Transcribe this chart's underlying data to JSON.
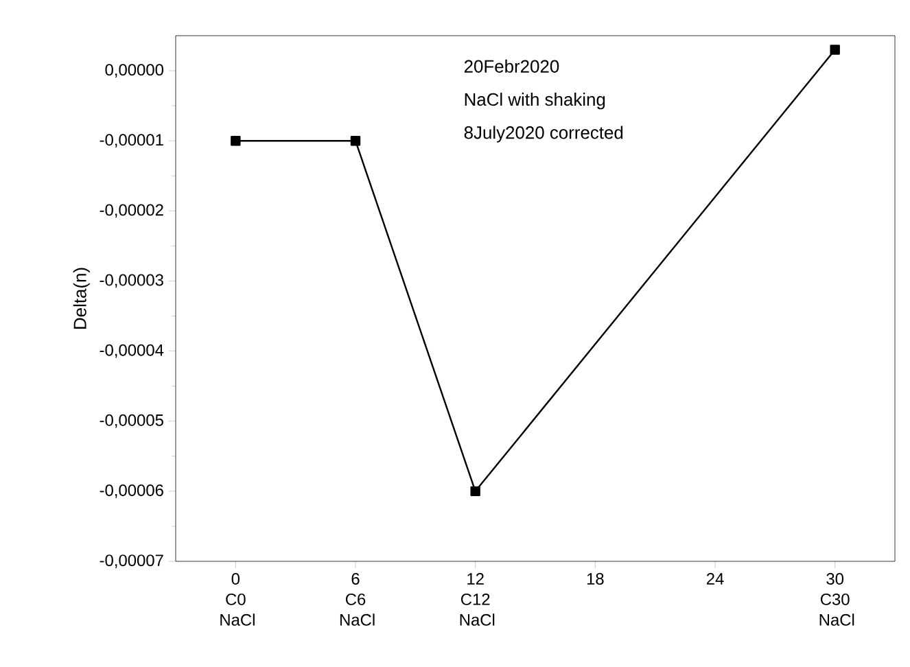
{
  "chart_data": {
    "type": "line",
    "ylabel": "Delta(n)",
    "x": [
      0,
      6,
      12,
      30
    ],
    "series": [
      {
        "color": "#000000",
        "values": [
          -1e-05,
          -1e-05,
          -6e-05,
          3e-06
        ]
      }
    ],
    "xlim": [
      -3,
      33
    ],
    "xticks": [
      {
        "value": 0,
        "label": "0 C0 NaCl"
      },
      {
        "value": 6,
        "label": "6 C6 NaCl"
      },
      {
        "value": 12,
        "label": "12 C12 NaCl"
      },
      18,
      24,
      {
        "value": 30,
        "label": "30 C30 NaCl"
      }
    ],
    "ylim": [
      -7e-05,
      5e-06
    ],
    "yticks": [
      {
        "value": -7e-05,
        "label": "-0,00007"
      },
      {
        "value": -6e-05,
        "label": "-0,00006"
      },
      {
        "value": -5e-05,
        "label": "-0,00005"
      },
      {
        "value": -4e-05,
        "label": "-0,00004"
      },
      {
        "value": -3e-05,
        "label": "-0,00003"
      },
      {
        "value": -2e-05,
        "label": "-0,00002"
      },
      {
        "value": -1e-05,
        "label": "-0,00001"
      },
      {
        "value": 0,
        "label": "0,00000"
      }
    ],
    "annotations": [
      "20Febr2020",
      "NaCl with shaking",
      "8July2020 corrected"
    ],
    "marker": "square",
    "line_style": "solid"
  }
}
